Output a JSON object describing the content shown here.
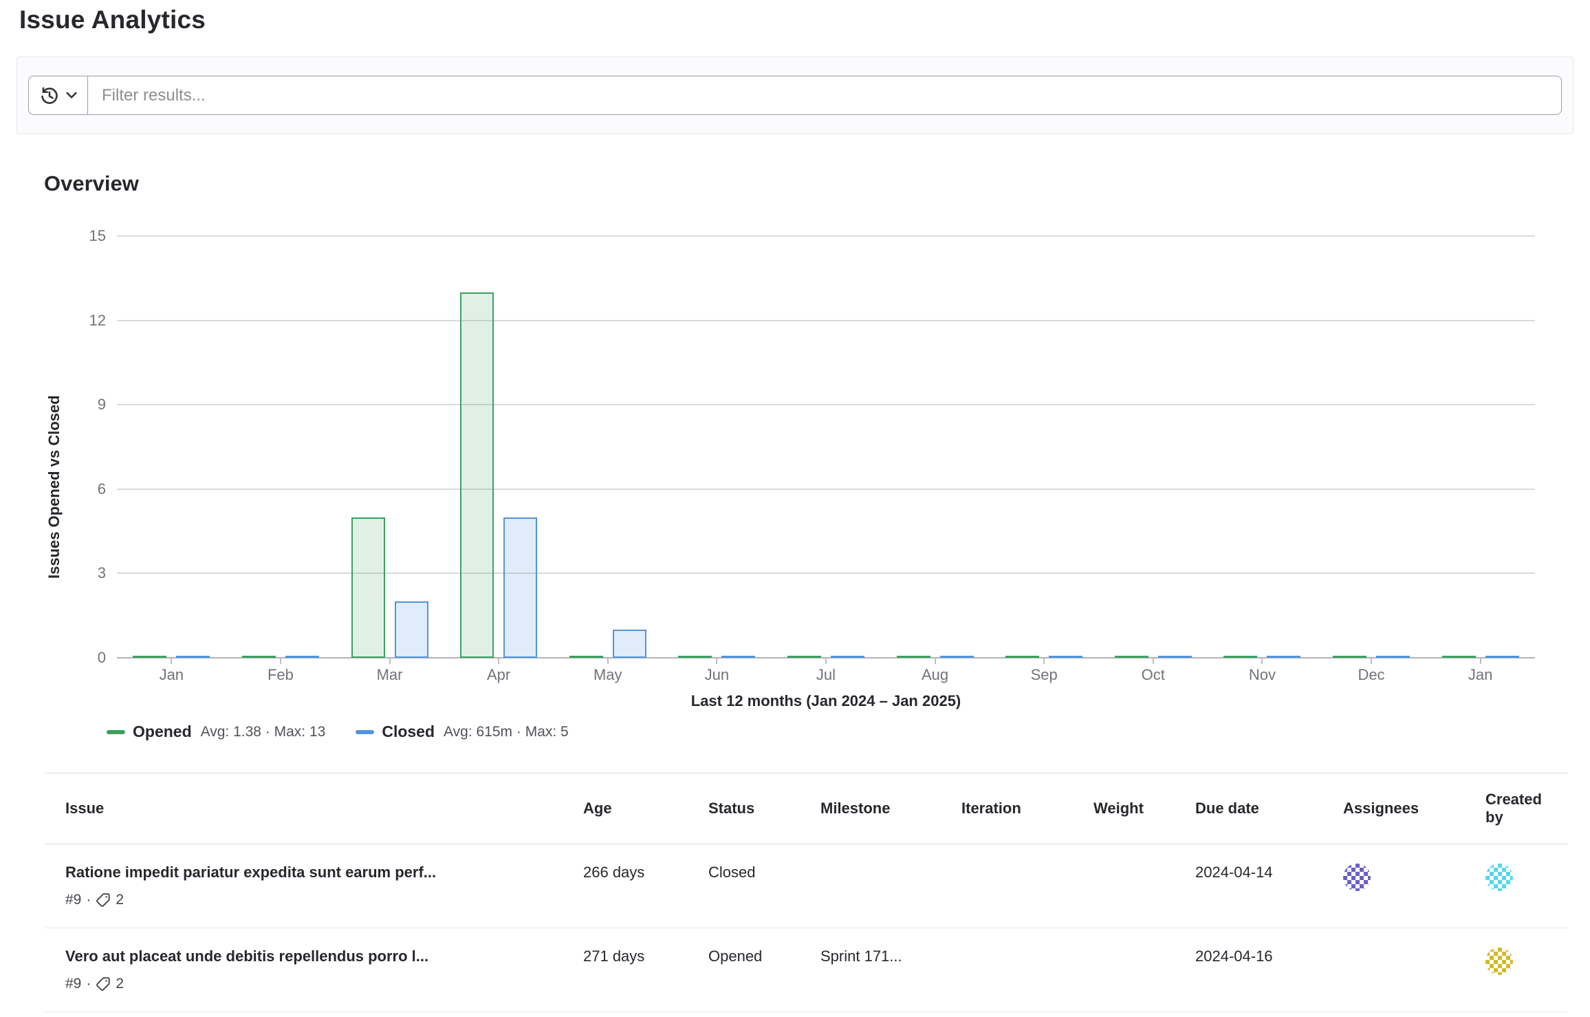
{
  "page": {
    "title": "Issue Analytics"
  },
  "filter": {
    "placeholder": "Filter results..."
  },
  "overview": {
    "heading": "Overview"
  },
  "chart_data": {
    "type": "bar",
    "categories": [
      "Jan",
      "Feb",
      "Mar",
      "Apr",
      "May",
      "Jun",
      "Jul",
      "Aug",
      "Sep",
      "Oct",
      "Nov",
      "Dec",
      "Jan"
    ],
    "series": [
      {
        "name": "Opened",
        "stats": "Avg: 1.38 · Max: 13",
        "color": "#3ca05f",
        "fill": "rgba(60,160,95,0.16)",
        "values": [
          0,
          0,
          5,
          13,
          0,
          0,
          0,
          0,
          0,
          0,
          0,
          0,
          0
        ]
      },
      {
        "name": "Closed",
        "stats": "Avg: 615m · Max: 5",
        "color": "#5294e0",
        "fill": "rgba(82,148,224,0.18)",
        "values": [
          0,
          0,
          2,
          5,
          1,
          0,
          0,
          0,
          0,
          0,
          0,
          0,
          0
        ]
      }
    ],
    "title": "",
    "xlabel": "Last 12 months (Jan 2024 – Jan 2025)",
    "ylabel": "Issues Opened vs Closed",
    "ylim": [
      0,
      15
    ],
    "yticks": [
      0,
      3,
      6,
      9,
      12,
      15
    ],
    "grid": true,
    "legend_position": "bottom-left"
  },
  "table": {
    "columns": [
      "Issue",
      "Age",
      "Status",
      "Milestone",
      "Iteration",
      "Weight",
      "Due date",
      "Assignees",
      "Created by"
    ],
    "meta_separator": "·",
    "rows": [
      {
        "title": "Ratione impedit pariatur expedita sunt earum perf...",
        "ref": "#9",
        "labels_count": "2",
        "age": "266 days",
        "status": "Closed",
        "milestone": "",
        "iteration": "",
        "weight": "",
        "due_date": "2024-04-14",
        "assignee_avatar_color": "#6a5fc9",
        "created_by_avatar_color": "#55d7ea"
      },
      {
        "title": "Vero aut placeat unde debitis repellendus porro l...",
        "ref": "#9",
        "labels_count": "2",
        "age": "271 days",
        "status": "Opened",
        "milestone": "Sprint 171...",
        "iteration": "",
        "weight": "",
        "due_date": "2024-04-16",
        "assignee_avatar_color": null,
        "created_by_avatar_color": "#d5b826"
      }
    ]
  }
}
